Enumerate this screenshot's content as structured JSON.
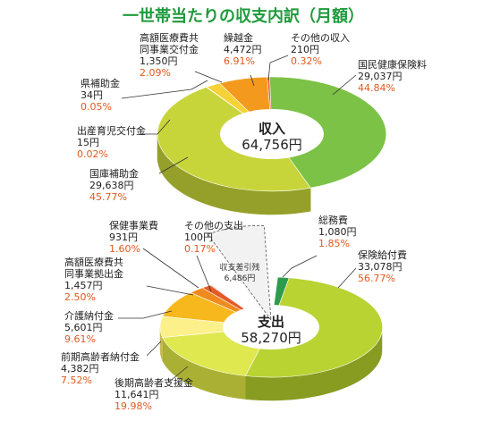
{
  "title": "一世帯当たりの収支内訳（月額）",
  "colors": {
    "title": "#1f9a3c",
    "pct": "#e2591f"
  },
  "chart_data": [
    {
      "type": "pie",
      "center_label": "収入",
      "center_value": "64,756円",
      "slices": [
        {
          "name": "国民健康保険料",
          "value": 29037,
          "value_label": "29,037円",
          "pct": "44.84%",
          "color": "#7cc246",
          "side": "#4e9528"
        },
        {
          "name": "国庫補助金",
          "value": 29638,
          "value_label": "29,638円",
          "pct": "45.77%",
          "color": "#c8d53a",
          "side": "#95a02a"
        },
        {
          "name": "出産育児交付金",
          "value": 15,
          "value_label": "15円",
          "pct": "0.02%",
          "color": "#a8c93a",
          "side": "#7b9629"
        },
        {
          "name": "県補助金",
          "value": 34,
          "value_label": "34円",
          "pct": "0.05%",
          "color": "#e7ea8a",
          "side": "#b2b55f"
        },
        {
          "name": "高額医療費共同事業交付金",
          "value": 1350,
          "value_label": "1,350円",
          "pct": "2.09%",
          "color": "#f6d236",
          "side": "#c19f1c"
        },
        {
          "name": "繰越金",
          "value": 4472,
          "value_label": "4,472円",
          "pct": "6.91%",
          "color": "#f39a1e",
          "side": "#bc6e0e"
        },
        {
          "name": "その他の収入",
          "value": 210,
          "value_label": "210円",
          "pct": "0.32%",
          "color": "#e8572a",
          "side": "#b03b17"
        }
      ]
    },
    {
      "type": "pie",
      "center_label": "支出",
      "center_value": "58,270円",
      "slices": [
        {
          "name": "総務費",
          "value": 1080,
          "value_label": "1,080円",
          "pct": "1.85%",
          "color": "#2e9a4e",
          "side": "#1d6d33"
        },
        {
          "name": "保険給付費",
          "value": 33078,
          "value_label": "33,078円",
          "pct": "56.77%",
          "color": "#b9d332",
          "side": "#889c22"
        },
        {
          "name": "後期高齢者支援金",
          "value": 11641,
          "value_label": "11,641円",
          "pct": "19.98%",
          "color": "#dfe84f",
          "side": "#a9b033"
        },
        {
          "name": "前期高齢者納付金",
          "value": 4382,
          "value_label": "4,382円",
          "pct": "7.52%",
          "color": "#fbf08a",
          "side": "#c6b95a"
        },
        {
          "name": "介護納付金",
          "value": 5601,
          "value_label": "5,601円",
          "pct": "9.61%",
          "color": "#f7b81d",
          "side": "#bf860f"
        },
        {
          "name": "高額医療費共同事業拠出金",
          "value": 1457,
          "value_label": "1,457円",
          "pct": "2.50%",
          "color": "#ef8a1e",
          "side": "#b3620e"
        },
        {
          "name": "保健事業費",
          "value": 931,
          "value_label": "931円",
          "pct": "1.60%",
          "color": "#e65a28",
          "side": "#a93e17"
        },
        {
          "name": "その他の支出",
          "value": 100,
          "value_label": "100円",
          "pct": "0.17%",
          "color": "#d8461f",
          "side": "#9b2f12"
        }
      ],
      "gap": {
        "name": "収支差引残",
        "value": 6486,
        "value_label": "6,486円"
      }
    }
  ]
}
